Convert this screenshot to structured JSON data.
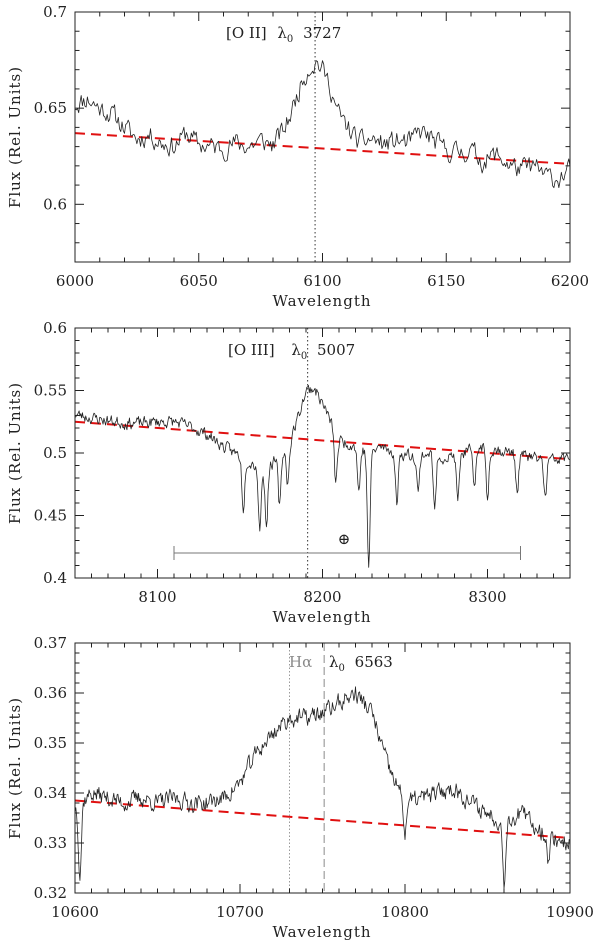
{
  "chart_data": [
    {
      "type": "line",
      "title": "",
      "xlabel": "Wavelength",
      "ylabel": "Flux (Rel. Units)",
      "xlim": [
        6000,
        6200
      ],
      "ylim": [
        0.57,
        0.7
      ],
      "xticks": [
        "6000",
        "6050",
        "6100",
        "6150",
        "6200"
      ],
      "yticks": [
        "0.6",
        "0.65",
        "0.7"
      ],
      "annotation": "[O II] λ0 3727",
      "annotation_parts": {
        "ion": "[O II]",
        "lambda": "λ",
        "sub": "0",
        "rest": "3727"
      },
      "line_marker_x": 6097,
      "continuum_fit": {
        "x": [
          6000,
          6200
        ],
        "y": [
          0.637,
          0.621
        ],
        "color": "#e01010",
        "style": "dashed"
      },
      "spectrum_nodes": {
        "x": [
          6000,
          6005,
          6010,
          6015,
          6020,
          6025,
          6030,
          6035,
          6040,
          6045,
          6050,
          6055,
          6060,
          6065,
          6070,
          6075,
          6080,
          6085,
          6088,
          6092,
          6095,
          6098,
          6100,
          6103,
          6106,
          6110,
          6115,
          6120,
          6125,
          6130,
          6135,
          6140,
          6145,
          6150,
          6155,
          6160,
          6165,
          6170,
          6175,
          6180,
          6185,
          6190,
          6195,
          6200
        ],
        "y": [
          0.652,
          0.655,
          0.65,
          0.647,
          0.64,
          0.634,
          0.636,
          0.632,
          0.63,
          0.637,
          0.631,
          0.63,
          0.629,
          0.632,
          0.63,
          0.633,
          0.631,
          0.64,
          0.65,
          0.665,
          0.672,
          0.674,
          0.67,
          0.662,
          0.648,
          0.64,
          0.632,
          0.634,
          0.631,
          0.633,
          0.632,
          0.638,
          0.633,
          0.628,
          0.627,
          0.628,
          0.622,
          0.626,
          0.621,
          0.618,
          0.62,
          0.615,
          0.613,
          0.618
        ]
      },
      "noise_amplitude": 0.0085,
      "seed": 11
    },
    {
      "type": "line",
      "title": "",
      "xlabel": "Wavelength",
      "ylabel": "Flux (Rel. Units)",
      "xlim": [
        8050,
        8350
      ],
      "ylim": [
        0.4,
        0.6
      ],
      "xticks": [
        "8100",
        "8200",
        "8300"
      ],
      "yticks": [
        "0.4",
        "0.45",
        "0.5",
        "0.55",
        "0.6"
      ],
      "annotation": "[O III] λ0 5007",
      "annotation_parts": {
        "ion": "[O III]",
        "lambda": "λ",
        "sub": "0",
        "rest": "5007"
      },
      "line_marker_x": 8191,
      "continuum_fit": {
        "x": [
          8050,
          8350
        ],
        "y": [
          0.525,
          0.495
        ],
        "color": "#e01010",
        "style": "dashed"
      },
      "telluric_band": {
        "x_start": 8110,
        "x_end": 8320,
        "y": 0.42,
        "symbol": "⊕",
        "symbol_x": 8213,
        "symbol_y": 0.433
      },
      "spectrum_nodes": {
        "x": [
          8050,
          8060,
          8070,
          8080,
          8090,
          8100,
          8110,
          8120,
          8130,
          8140,
          8150,
          8160,
          8165,
          8170,
          8175,
          8180,
          8185,
          8190,
          8195,
          8200,
          8205,
          8210,
          8220,
          8228,
          8235,
          8245,
          8255,
          8265,
          8275,
          8285,
          8295,
          8305,
          8315,
          8325,
          8335,
          8345,
          8350
        ],
        "y": [
          0.531,
          0.528,
          0.526,
          0.524,
          0.524,
          0.525,
          0.525,
          0.521,
          0.515,
          0.505,
          0.498,
          0.49,
          0.488,
          0.492,
          0.498,
          0.508,
          0.528,
          0.55,
          0.552,
          0.54,
          0.525,
          0.51,
          0.506,
          0.5,
          0.505,
          0.5,
          0.498,
          0.5,
          0.496,
          0.5,
          0.505,
          0.503,
          0.5,
          0.497,
          0.494,
          0.495,
          0.497
        ]
      },
      "absorption_dips": [
        {
          "x": 8152,
          "depth": 0.04
        },
        {
          "x": 8162,
          "depth": 0.05
        },
        {
          "x": 8166,
          "depth": 0.045
        },
        {
          "x": 8174,
          "depth": 0.04
        },
        {
          "x": 8179,
          "depth": 0.03
        },
        {
          "x": 8208,
          "depth": 0.04
        },
        {
          "x": 8222,
          "depth": 0.035
        },
        {
          "x": 8228,
          "depth": 0.09
        },
        {
          "x": 8245,
          "depth": 0.04
        },
        {
          "x": 8258,
          "depth": 0.03
        },
        {
          "x": 8268,
          "depth": 0.045
        },
        {
          "x": 8282,
          "depth": 0.038
        },
        {
          "x": 8292,
          "depth": 0.035
        },
        {
          "x": 8300,
          "depth": 0.04
        },
        {
          "x": 8318,
          "depth": 0.03
        },
        {
          "x": 8335,
          "depth": 0.03
        }
      ],
      "noise_amplitude": 0.0075,
      "seed": 23
    },
    {
      "type": "line",
      "title": "",
      "xlabel": "Wavelength",
      "ylabel": "Flux (Rel. Units)",
      "xlim": [
        10600,
        10900
      ],
      "ylim": [
        0.32,
        0.37
      ],
      "xticks": [
        "10600",
        "10700",
        "10800",
        "10900"
      ],
      "yticks": [
        "0.32",
        "0.33",
        "0.34",
        "0.35",
        "0.36",
        "0.37"
      ],
      "annotation": "Hα  λ0 6563",
      "annotation_parts": {
        "ion": "Hα",
        "lambda": "λ",
        "sub": "0",
        "rest": "6563"
      },
      "line_marker_x": 10751,
      "secondary_marker_x": 10730,
      "continuum_fit": {
        "x": [
          10600,
          10900
        ],
        "y": [
          0.3385,
          0.331
        ],
        "color": "#e01010",
        "style": "dashed"
      },
      "spectrum_nodes": {
        "x": [
          10600,
          10610,
          10620,
          10630,
          10640,
          10650,
          10660,
          10670,
          10680,
          10690,
          10700,
          10710,
          10720,
          10730,
          10740,
          10750,
          10760,
          10770,
          10780,
          10790,
          10800,
          10810,
          10820,
          10830,
          10840,
          10850,
          10860,
          10870,
          10880,
          10890,
          10900
        ],
        "y": [
          0.337,
          0.34,
          0.339,
          0.338,
          0.339,
          0.338,
          0.339,
          0.338,
          0.338,
          0.339,
          0.342,
          0.348,
          0.352,
          0.355,
          0.355,
          0.356,
          0.358,
          0.36,
          0.356,
          0.345,
          0.338,
          0.339,
          0.34,
          0.341,
          0.338,
          0.336,
          0.334,
          0.336,
          0.333,
          0.331,
          0.33
        ]
      },
      "absorption_dips": [
        {
          "x": 10603,
          "depth": 0.014
        },
        {
          "x": 10800,
          "depth": 0.006
        },
        {
          "x": 10860,
          "depth": 0.012
        },
        {
          "x": 10887,
          "depth": 0.005
        }
      ],
      "noise_amplitude": 0.0028,
      "seed": 37
    }
  ]
}
